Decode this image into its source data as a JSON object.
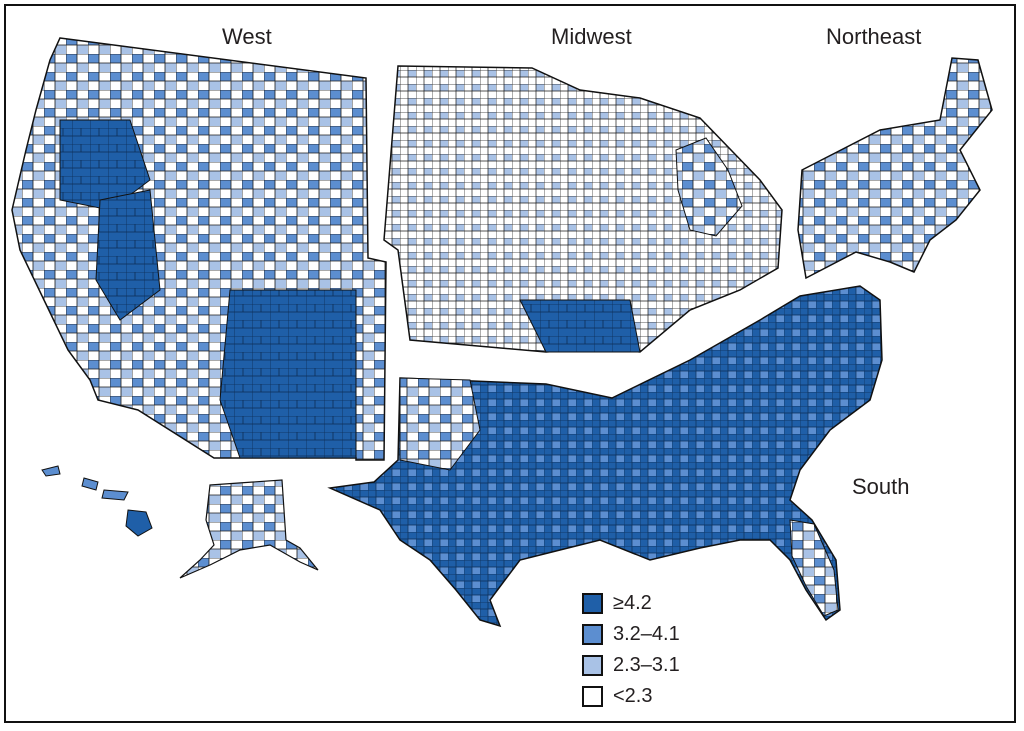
{
  "map": {
    "regions": [
      {
        "key": "west",
        "label": "West"
      },
      {
        "key": "midwest",
        "label": "Midwest"
      },
      {
        "key": "northeast",
        "label": "Northeast"
      },
      {
        "key": "south",
        "label": "South"
      }
    ],
    "legend": [
      {
        "label": "≥4.2",
        "color": "#1f5fa8"
      },
      {
        "label": "3.2–4.1",
        "color": "#5c8ed0"
      },
      {
        "label": "2.3–3.1",
        "color": "#a9c2e6"
      },
      {
        "label": "<2.3",
        "color": "#ffffff"
      }
    ],
    "colors": {
      "border": "#111111",
      "county_line": "#1a1a1a"
    }
  }
}
